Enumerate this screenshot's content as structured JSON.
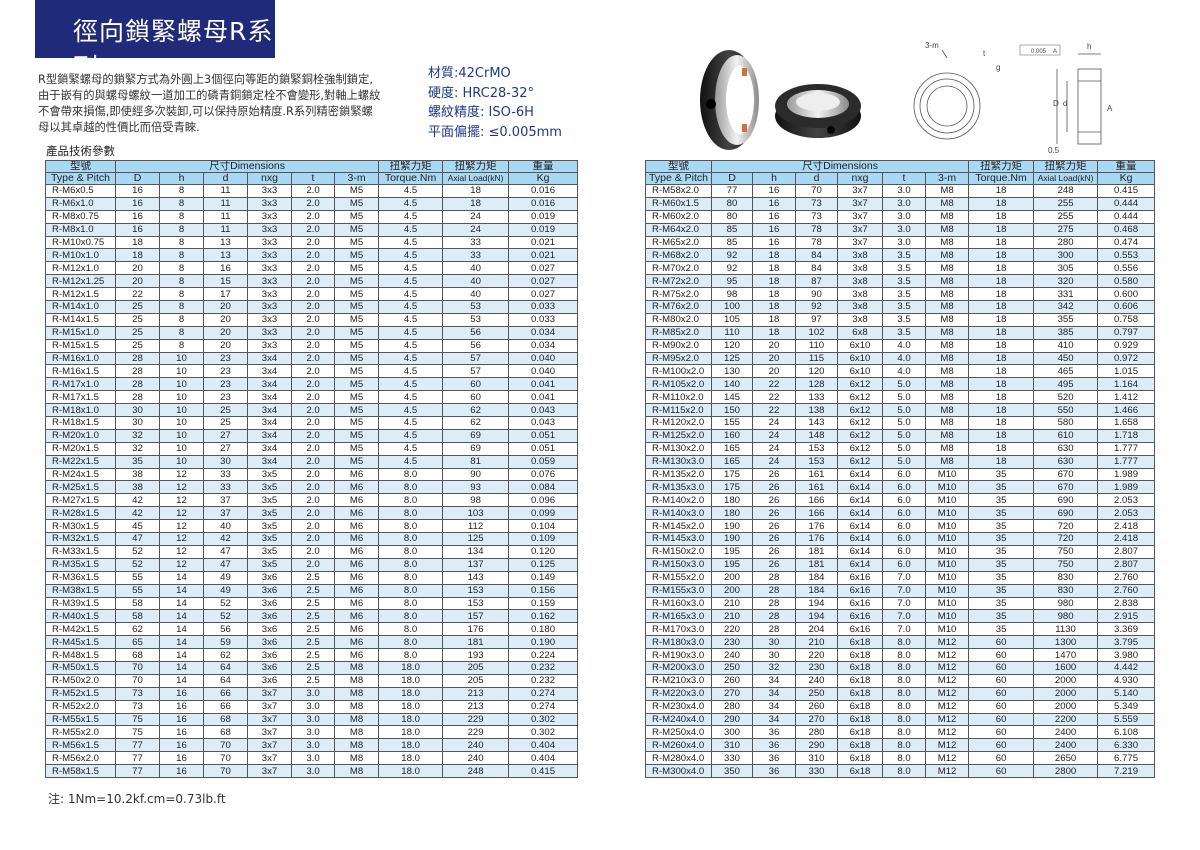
{
  "title": "徑向鎖緊螺母R系列",
  "intro": "R型鎖緊螺母的鎖緊方式為外圓上3個徑向等距的鎖緊銅栓強制鎖定,由于嵌有的與螺母螺紋一道加工的磷青銅鎖定栓不會變形,對軸上螺紋不會帶來損傷,即使經多次裝卸,可以保持原始精度.R系列精密鎖緊螺母以其卓越的性價比而倍受青睞.",
  "specs": {
    "material": "材質:42CrMO",
    "hardness": "硬度: HRC28-32°",
    "thread": "螺紋精度: ISO-6H",
    "flatness": "平面偏擺: ≤0.005mm"
  },
  "params_title": "產品技術參數",
  "diagram_labels": {
    "m": "3-m",
    "t": "t",
    "g": "g",
    "tol": "0.005",
    "datum": "A",
    "h": "h",
    "D": "D",
    "d": "d",
    "A": "A",
    "chamfer": "0.5"
  },
  "headers": {
    "type_cn": "型號",
    "type_en": "Type & Pitch",
    "dims": "尺寸Dimensions",
    "D": "D",
    "h": "h",
    "d": "d",
    "nxg": "nxg",
    "t": "t",
    "m": "3-m",
    "torque_cn": "扭緊力矩",
    "torque_en": "Torque.Nm",
    "axial_cn": "扭緊力矩",
    "axial_en": "Axial Load(kN)",
    "weight_cn": "重量",
    "weight_en": "Kg"
  },
  "left_rows": [
    [
      "R-M6x0.5",
      "16",
      "8",
      "11",
      "3x3",
      "2.0",
      "M5",
      "4.5",
      "18",
      "0.016"
    ],
    [
      "R-M6x1.0",
      "16",
      "8",
      "11",
      "3x3",
      "2.0",
      "M5",
      "4.5",
      "18",
      "0.016"
    ],
    [
      "R-M8x0.75",
      "16",
      "8",
      "11",
      "3x3",
      "2.0",
      "M5",
      "4.5",
      "24",
      "0.019"
    ],
    [
      "R-M8x1.0",
      "16",
      "8",
      "11",
      "3x3",
      "2.0",
      "M5",
      "4.5",
      "24",
      "0.019"
    ],
    [
      "R-M10x0.75",
      "18",
      "8",
      "13",
      "3x3",
      "2.0",
      "M5",
      "4.5",
      "33",
      "0.021"
    ],
    [
      "R-M10x1.0",
      "18",
      "8",
      "13",
      "3x3",
      "2.0",
      "M5",
      "4.5",
      "33",
      "0.021"
    ],
    [
      "R-M12x1.0",
      "20",
      "8",
      "16",
      "3x3",
      "2.0",
      "M5",
      "4.5",
      "40",
      "0.027"
    ],
    [
      "R-M12x1.25",
      "20",
      "8",
      "15",
      "3x3",
      "2.0",
      "M5",
      "4.5",
      "40",
      "0.027"
    ],
    [
      "R-M12x1.5",
      "22",
      "8",
      "17",
      "3x3",
      "2.0",
      "M5",
      "4.5",
      "40",
      "0.027"
    ],
    [
      "R-M14x1.0",
      "25",
      "8",
      "20",
      "3x3",
      "2.0",
      "M5",
      "4.5",
      "53",
      "0.033"
    ],
    [
      "R-M14x1.5",
      "25",
      "8",
      "20",
      "3x3",
      "2.0",
      "M5",
      "4.5",
      "53",
      "0.033"
    ],
    [
      "R-M15x1.0",
      "25",
      "8",
      "20",
      "3x3",
      "2.0",
      "M5",
      "4.5",
      "56",
      "0.034"
    ],
    [
      "R-M15x1.5",
      "25",
      "8",
      "20",
      "3x3",
      "2.0",
      "M5",
      "4.5",
      "56",
      "0.034"
    ],
    [
      "R-M16x1.0",
      "28",
      "10",
      "23",
      "3x4",
      "2.0",
      "M5",
      "4.5",
      "57",
      "0.040"
    ],
    [
      "R-M16x1.5",
      "28",
      "10",
      "23",
      "3x4",
      "2.0",
      "M5",
      "4.5",
      "57",
      "0.040"
    ],
    [
      "R-M17x1.0",
      "28",
      "10",
      "23",
      "3x4",
      "2.0",
      "M5",
      "4.5",
      "60",
      "0.041"
    ],
    [
      "R-M17x1.5",
      "28",
      "10",
      "23",
      "3x4",
      "2.0",
      "M5",
      "4.5",
      "60",
      "0.041"
    ],
    [
      "R-M18x1.0",
      "30",
      "10",
      "25",
      "3x4",
      "2.0",
      "M5",
      "4.5",
      "62",
      "0.043"
    ],
    [
      "R-M18x1.5",
      "30",
      "10",
      "25",
      "3x4",
      "2.0",
      "M5",
      "4.5",
      "62",
      "0.043"
    ],
    [
      "R-M20x1.0",
      "32",
      "10",
      "27",
      "3x4",
      "2.0",
      "M5",
      "4.5",
      "69",
      "0.051"
    ],
    [
      "R-M20x1.5",
      "32",
      "10",
      "27",
      "3x4",
      "2.0",
      "M5",
      "4.5",
      "69",
      "0.051"
    ],
    [
      "R-M22x1.5",
      "35",
      "10",
      "30",
      "3x4",
      "2.0",
      "M5",
      "4.5",
      "81",
      "0.059"
    ],
    [
      "R-M24x1.5",
      "38",
      "12",
      "33",
      "3x5",
      "2.0",
      "M6",
      "8.0",
      "90",
      "0.076"
    ],
    [
      "R-M25x1.5",
      "38",
      "12",
      "33",
      "3x5",
      "2.0",
      "M6",
      "8.0",
      "93",
      "0.084"
    ],
    [
      "R-M27x1.5",
      "42",
      "12",
      "37",
      "3x5",
      "2.0",
      "M6",
      "8.0",
      "98",
      "0.096"
    ],
    [
      "R-M28x1.5",
      "42",
      "12",
      "37",
      "3x5",
      "2.0",
      "M6",
      "8.0",
      "103",
      "0.099"
    ],
    [
      "R-M30x1.5",
      "45",
      "12",
      "40",
      "3x5",
      "2.0",
      "M6",
      "8.0",
      "112",
      "0.104"
    ],
    [
      "R-M32x1.5",
      "47",
      "12",
      "42",
      "3x5",
      "2.0",
      "M6",
      "8.0",
      "125",
      "0.109"
    ],
    [
      "R-M33x1.5",
      "52",
      "12",
      "47",
      "3x5",
      "2.0",
      "M6",
      "8.0",
      "134",
      "0.120"
    ],
    [
      "R-M35x1.5",
      "52",
      "12",
      "47",
      "3x5",
      "2.0",
      "M6",
      "8.0",
      "137",
      "0.125"
    ],
    [
      "R-M36x1.5",
      "55",
      "14",
      "49",
      "3x6",
      "2.5",
      "M6",
      "8.0",
      "143",
      "0.149"
    ],
    [
      "R-M38x1.5",
      "55",
      "14",
      "49",
      "3x6",
      "2.5",
      "M6",
      "8.0",
      "153",
      "0.156"
    ],
    [
      "R-M39x1.5",
      "58",
      "14",
      "52",
      "3x6",
      "2.5",
      "M6",
      "8.0",
      "153",
      "0.159"
    ],
    [
      "R-M40x1.5",
      "58",
      "14",
      "52",
      "3x6",
      "2.5",
      "M6",
      "8.0",
      "157",
      "0.162"
    ],
    [
      "R-M42x1.5",
      "62",
      "14",
      "56",
      "3x6",
      "2.5",
      "M6",
      "8.0",
      "176",
      "0.180"
    ],
    [
      "R-M45x1.5",
      "65",
      "14",
      "59",
      "3x6",
      "2.5",
      "M6",
      "8.0",
      "181",
      "0.190"
    ],
    [
      "R-M48x1.5",
      "68",
      "14",
      "62",
      "3x6",
      "2.5",
      "M6",
      "8.0",
      "193",
      "0.224"
    ],
    [
      "R-M50x1.5",
      "70",
      "14",
      "64",
      "3x6",
      "2.5",
      "M8",
      "18.0",
      "205",
      "0.232"
    ],
    [
      "R-M50x2.0",
      "70",
      "14",
      "64",
      "3x6",
      "2.5",
      "M8",
      "18.0",
      "205",
      "0.232"
    ],
    [
      "R-M52x1.5",
      "73",
      "16",
      "66",
      "3x7",
      "3.0",
      "M8",
      "18.0",
      "213",
      "0.274"
    ],
    [
      "R-M52x2.0",
      "73",
      "16",
      "66",
      "3x7",
      "3.0",
      "M8",
      "18.0",
      "213",
      "0.274"
    ],
    [
      "R-M55x1.5",
      "75",
      "16",
      "68",
      "3x7",
      "3.0",
      "M8",
      "18.0",
      "229",
      "0.302"
    ],
    [
      "R-M55x2.0",
      "75",
      "16",
      "68",
      "3x7",
      "3.0",
      "M8",
      "18.0",
      "229",
      "0.302"
    ],
    [
      "R-M56x1.5",
      "77",
      "16",
      "70",
      "3x7",
      "3.0",
      "M8",
      "18.0",
      "240",
      "0.404"
    ],
    [
      "R-M56x2.0",
      "77",
      "16",
      "70",
      "3x7",
      "3.0",
      "M8",
      "18.0",
      "240",
      "0.404"
    ],
    [
      "R-M58x1.5",
      "77",
      "16",
      "70",
      "3x7",
      "3.0",
      "M8",
      "18.0",
      "248",
      "0.415"
    ]
  ],
  "right_rows": [
    [
      "R-M58x2.0",
      "77",
      "16",
      "70",
      "3x7",
      "3.0",
      "M8",
      "18",
      "248",
      "0.415"
    ],
    [
      "R-M60x1.5",
      "80",
      "16",
      "73",
      "3x7",
      "3.0",
      "M8",
      "18",
      "255",
      "0.444"
    ],
    [
      "R-M60x2.0",
      "80",
      "16",
      "73",
      "3x7",
      "3.0",
      "M8",
      "18",
      "255",
      "0.444"
    ],
    [
      "R-M64x2.0",
      "85",
      "16",
      "78",
      "3x7",
      "3.0",
      "M8",
      "18",
      "275",
      "0.468"
    ],
    [
      "R-M65x2.0",
      "85",
      "16",
      "78",
      "3x7",
      "3.0",
      "M8",
      "18",
      "280",
      "0.474"
    ],
    [
      "R-M68x2.0",
      "92",
      "18",
      "84",
      "3x8",
      "3.5",
      "M8",
      "18",
      "300",
      "0.553"
    ],
    [
      "R-M70x2.0",
      "92",
      "18",
      "84",
      "3x8",
      "3.5",
      "M8",
      "18",
      "305",
      "0.556"
    ],
    [
      "R-M72x2.0",
      "95",
      "18",
      "87",
      "3x8",
      "3.5",
      "M8",
      "18",
      "320",
      "0.580"
    ],
    [
      "R-M75x2.0",
      "98",
      "18",
      "90",
      "3x8",
      "3.5",
      "M8",
      "18",
      "331",
      "0.600"
    ],
    [
      "R-M76x2.0",
      "100",
      "18",
      "92",
      "3x8",
      "3.5",
      "M8",
      "18",
      "342",
      "0.606"
    ],
    [
      "R-M80x2.0",
      "105",
      "18",
      "97",
      "3x8",
      "3.5",
      "M8",
      "18",
      "355",
      "0.758"
    ],
    [
      "R-M85x2.0",
      "110",
      "18",
      "102",
      "6x8",
      "3.5",
      "M8",
      "18",
      "385",
      "0.797"
    ],
    [
      "R-M90x2.0",
      "120",
      "20",
      "110",
      "6x10",
      "4.0",
      "M8",
      "18",
      "410",
      "0.929"
    ],
    [
      "R-M95x2.0",
      "125",
      "20",
      "115",
      "6x10",
      "4.0",
      "M8",
      "18",
      "450",
      "0.972"
    ],
    [
      "R-M100x2.0",
      "130",
      "20",
      "120",
      "6x10",
      "4.0",
      "M8",
      "18",
      "465",
      "1.015"
    ],
    [
      "R-M105x2.0",
      "140",
      "22",
      "128",
      "6x12",
      "5.0",
      "M8",
      "18",
      "495",
      "1.164"
    ],
    [
      "R-M110x2.0",
      "145",
      "22",
      "133",
      "6x12",
      "5.0",
      "M8",
      "18",
      "520",
      "1.412"
    ],
    [
      "R-M115x2.0",
      "150",
      "22",
      "138",
      "6x12",
      "5.0",
      "M8",
      "18",
      "550",
      "1.466"
    ],
    [
      "R-M120x2.0",
      "155",
      "24",
      "143",
      "6x12",
      "5.0",
      "M8",
      "18",
      "580",
      "1.658"
    ],
    [
      "R-M125x2.0",
      "160",
      "24",
      "148",
      "6x12",
      "5.0",
      "M8",
      "18",
      "610",
      "1.718"
    ],
    [
      "R-M130x2.0",
      "165",
      "24",
      "153",
      "6x12",
      "5.0",
      "M8",
      "18",
      "630",
      "1.777"
    ],
    [
      "R-M130x3.0",
      "165",
      "24",
      "153",
      "6x12",
      "5.0",
      "M8",
      "18",
      "630",
      "1.777"
    ],
    [
      "R-M135x2.0",
      "175",
      "26",
      "161",
      "6x14",
      "6.0",
      "M10",
      "35",
      "670",
      "1.989"
    ],
    [
      "R-M135x3.0",
      "175",
      "26",
      "161",
      "6x14",
      "6.0",
      "M10",
      "35",
      "670",
      "1.989"
    ],
    [
      "R-M140x2.0",
      "180",
      "26",
      "166",
      "6x14",
      "6.0",
      "M10",
      "35",
      "690",
      "2.053"
    ],
    [
      "R-M140x3.0",
      "180",
      "26",
      "166",
      "6x14",
      "6.0",
      "M10",
      "35",
      "690",
      "2.053"
    ],
    [
      "R-M145x2.0",
      "190",
      "26",
      "176",
      "6x14",
      "6.0",
      "M10",
      "35",
      "720",
      "2.418"
    ],
    [
      "R-M145x3.0",
      "190",
      "26",
      "176",
      "6x14",
      "6.0",
      "M10",
      "35",
      "720",
      "2.418"
    ],
    [
      "R-M150x2.0",
      "195",
      "26",
      "181",
      "6x14",
      "6.0",
      "M10",
      "35",
      "750",
      "2.807"
    ],
    [
      "R-M150x3.0",
      "195",
      "26",
      "181",
      "6x14",
      "6.0",
      "M10",
      "35",
      "750",
      "2.807"
    ],
    [
      "R-M155x2.0",
      "200",
      "28",
      "184",
      "6x16",
      "7.0",
      "M10",
      "35",
      "830",
      "2.760"
    ],
    [
      "R-M155x3.0",
      "200",
      "28",
      "184",
      "6x16",
      "7.0",
      "M10",
      "35",
      "830",
      "2.760"
    ],
    [
      "R-M160x3.0",
      "210",
      "28",
      "194",
      "6x16",
      "7.0",
      "M10",
      "35",
      "980",
      "2.838"
    ],
    [
      "R-M165x3.0",
      "210",
      "28",
      "194",
      "6x16",
      "7.0",
      "M10",
      "35",
      "980",
      "2.915"
    ],
    [
      "R-M170x3.0",
      "220",
      "28",
      "204",
      "6x16",
      "7.0",
      "M10",
      "35",
      "1130",
      "3.369"
    ],
    [
      "R-M180x3.0",
      "230",
      "30",
      "210",
      "6x18",
      "8.0",
      "M12",
      "60",
      "1300",
      "3.795"
    ],
    [
      "R-M190x3.0",
      "240",
      "30",
      "220",
      "6x18",
      "8.0",
      "M12",
      "60",
      "1470",
      "3.980"
    ],
    [
      "R-M200x3.0",
      "250",
      "32",
      "230",
      "6x18",
      "8.0",
      "M12",
      "60",
      "1600",
      "4.442"
    ],
    [
      "R-M210x3.0",
      "260",
      "34",
      "240",
      "6x18",
      "8.0",
      "M12",
      "60",
      "2000",
      "4.930"
    ],
    [
      "R-M220x3.0",
      "270",
      "34",
      "250",
      "6x18",
      "8.0",
      "M12",
      "60",
      "2000",
      "5.140"
    ],
    [
      "R-M230x4.0",
      "280",
      "34",
      "260",
      "6x18",
      "8.0",
      "M12",
      "60",
      "2000",
      "5.349"
    ],
    [
      "R-M240x4.0",
      "290",
      "34",
      "270",
      "6x18",
      "8.0",
      "M12",
      "60",
      "2200",
      "5.559"
    ],
    [
      "R-M250x4.0",
      "300",
      "36",
      "280",
      "6x18",
      "8.0",
      "M12",
      "60",
      "2400",
      "6.108"
    ],
    [
      "R-M260x4.0",
      "310",
      "36",
      "290",
      "6x18",
      "8.0",
      "M12",
      "60",
      "2400",
      "6.330"
    ],
    [
      "R-M280x4.0",
      "330",
      "36",
      "310",
      "6x18",
      "8.0",
      "M12",
      "60",
      "2650",
      "6.775"
    ],
    [
      "R-M300x4.0",
      "350",
      "36",
      "330",
      "6x18",
      "8.0",
      "M12",
      "60",
      "2800",
      "7.219"
    ]
  ],
  "note": "注: 1Nm=10.2kf.cm=0.73lb.ft",
  "colors": {
    "banner": "#1f2a7a",
    "header": "#a9d8f2",
    "stripe": "#dcedf8",
    "specs_text": "#1f3a8c"
  }
}
